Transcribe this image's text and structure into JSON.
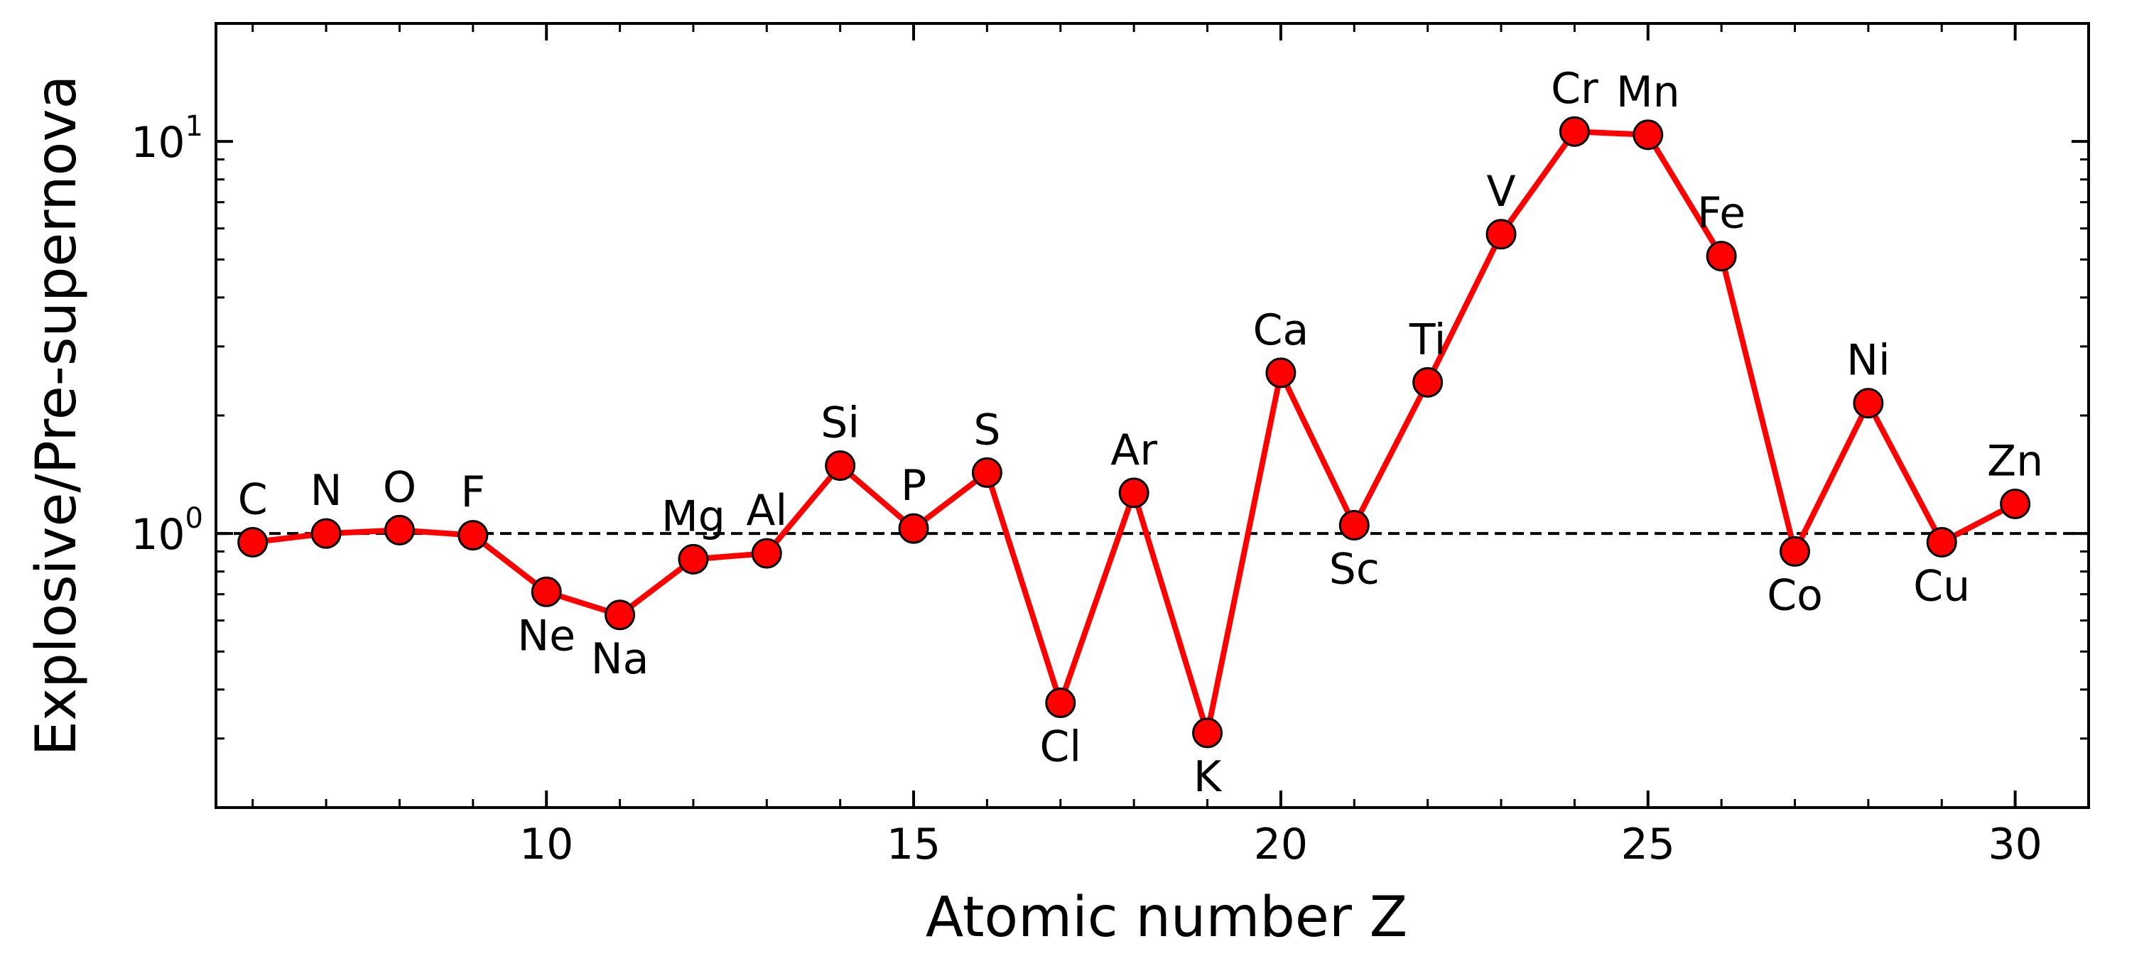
{
  "chart_data": {
    "type": "line",
    "xlabel": "Atomic number Z",
    "ylabel": "Explosive/Pre-supernova",
    "yscale": "log",
    "xlim": [
      5.5,
      31
    ],
    "ylim": [
      0.2,
      20
    ],
    "x_ticks": [
      10,
      15,
      20,
      25,
      30
    ],
    "y_ticks": [
      {
        "value": 1,
        "base": "10",
        "exp": "0"
      },
      {
        "value": 10,
        "base": "10",
        "exp": "1"
      }
    ],
    "reference_line": {
      "y": 1,
      "style": "dashed",
      "color": "#000000"
    },
    "line_color": "#ff0000",
    "marker_color": "#ff0000",
    "points": [
      {
        "z": 6,
        "label": "C",
        "y": 0.95,
        "label_pos": "above"
      },
      {
        "z": 7,
        "label": "N",
        "y": 1.0,
        "label_pos": "above"
      },
      {
        "z": 8,
        "label": "O",
        "y": 1.02,
        "label_pos": "above"
      },
      {
        "z": 9,
        "label": "F",
        "y": 0.99,
        "label_pos": "above"
      },
      {
        "z": 10,
        "label": "Ne",
        "y": 0.71,
        "label_pos": "below"
      },
      {
        "z": 11,
        "label": "Na",
        "y": 0.62,
        "label_pos": "below"
      },
      {
        "z": 12,
        "label": "Mg",
        "y": 0.86,
        "label_pos": "above"
      },
      {
        "z": 13,
        "label": "Al",
        "y": 0.89,
        "label_pos": "above"
      },
      {
        "z": 14,
        "label": "Si",
        "y": 1.49,
        "label_pos": "above"
      },
      {
        "z": 15,
        "label": "P",
        "y": 1.03,
        "label_pos": "above"
      },
      {
        "z": 16,
        "label": "S",
        "y": 1.43,
        "label_pos": "above"
      },
      {
        "z": 17,
        "label": "Cl",
        "y": 0.37,
        "label_pos": "below"
      },
      {
        "z": 18,
        "label": "Ar",
        "y": 1.27,
        "label_pos": "above"
      },
      {
        "z": 19,
        "label": "K",
        "y": 0.31,
        "label_pos": "below"
      },
      {
        "z": 20,
        "label": "Ca",
        "y": 2.57,
        "label_pos": "above"
      },
      {
        "z": 21,
        "label": "Sc",
        "y": 1.05,
        "label_pos": "below"
      },
      {
        "z": 22,
        "label": "Ti",
        "y": 2.43,
        "label_pos": "above"
      },
      {
        "z": 23,
        "label": "V",
        "y": 5.8,
        "label_pos": "above"
      },
      {
        "z": 24,
        "label": "Cr",
        "y": 10.6,
        "label_pos": "above"
      },
      {
        "z": 25,
        "label": "Mn",
        "y": 10.4,
        "label_pos": "above"
      },
      {
        "z": 26,
        "label": "Fe",
        "y": 5.1,
        "label_pos": "above"
      },
      {
        "z": 27,
        "label": "Co",
        "y": 0.9,
        "label_pos": "below"
      },
      {
        "z": 28,
        "label": "Ni",
        "y": 2.15,
        "label_pos": "above"
      },
      {
        "z": 29,
        "label": "Cu",
        "y": 0.95,
        "label_pos": "below"
      },
      {
        "z": 30,
        "label": "Zn",
        "y": 1.19,
        "label_pos": "above"
      }
    ]
  }
}
